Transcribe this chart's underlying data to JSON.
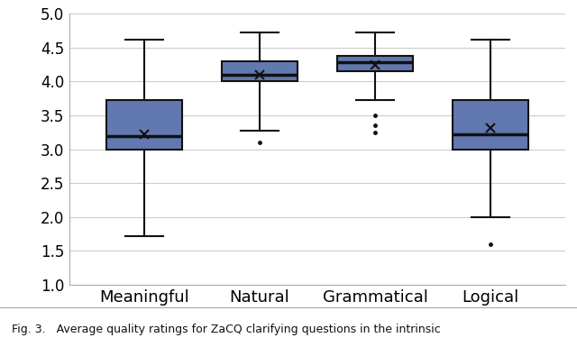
{
  "categories": [
    "Meaningful",
    "Natural",
    "Grammatical",
    "Logical"
  ],
  "box_data": [
    {
      "whislo": 1.72,
      "q1": 3.0,
      "med": 3.2,
      "q3": 3.72,
      "whishi": 4.62,
      "mean": 3.22,
      "fliers": []
    },
    {
      "whislo": 3.28,
      "q1": 4.0,
      "med": 4.1,
      "q3": 4.3,
      "whishi": 4.72,
      "mean": 4.1,
      "fliers": [
        3.1
      ]
    },
    {
      "whislo": 3.72,
      "q1": 4.15,
      "med": 4.28,
      "q3": 4.38,
      "whishi": 4.72,
      "mean": 4.25,
      "fliers": [
        3.25,
        3.35,
        3.5
      ]
    },
    {
      "whislo": 2.0,
      "q1": 3.0,
      "med": 3.22,
      "q3": 3.72,
      "whishi": 4.62,
      "mean": 3.32,
      "fliers": [
        1.6
      ]
    }
  ],
  "box_color": "#6278b0",
  "median_color": "#111111",
  "whisker_color": "#111111",
  "flier_color": "#111111",
  "mean_marker": "x",
  "mean_color": "#111111",
  "ylim": [
    1.0,
    5.0
  ],
  "yticks": [
    1.0,
    1.5,
    2.0,
    2.5,
    3.0,
    3.5,
    4.0,
    4.5,
    5.0
  ],
  "background_color": "#ffffff",
  "grid_color": "#cccccc",
  "box_width": 0.65,
  "linewidth": 1.5,
  "figsize": [
    6.4,
    3.85
  ],
  "dpi": 100,
  "caption": "Fig. 3.   Average quality ratings for ZaCQ clarifying questions in the intrinsic",
  "caption_fontsize": 9,
  "tick_fontsize": 12,
  "xlabel_fontsize": 13
}
